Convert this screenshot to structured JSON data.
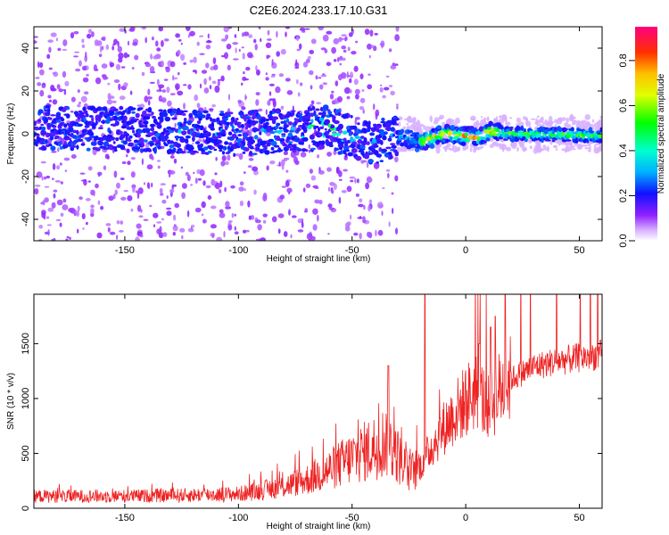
{
  "title": "C2E6.2024.233.17.10.G31",
  "chart_data": [
    {
      "type": "heatmap",
      "xlabel": "Height of straight line (km)",
      "ylabel": "Frequency (Hz)",
      "xlim": [
        -190,
        60
      ],
      "ylim": [
        -50,
        50
      ],
      "xticks": [
        -150,
        -100,
        -50,
        0,
        50
      ],
      "yticks": [
        -40,
        -20,
        0,
        20,
        40
      ],
      "colorbar": {
        "label": "Normalized spectral amplitude",
        "range": [
          0,
          0.95
        ],
        "ticks": [
          0.0,
          0.2,
          0.4,
          0.6,
          0.8
        ],
        "tick_labels": [
          "0.0",
          "0.2",
          "0.4",
          "0.6",
          "0.8"
        ],
        "colors": [
          "#ffffff",
          "#c080ff",
          "#8000ff",
          "#0000ff",
          "#00ffff",
          "#00ff00",
          "#ffff00",
          "#ff8000",
          "#ff0000",
          "#ff0080"
        ]
      },
      "ridge": {
        "description_points": [
          [
            -190,
            3
          ],
          [
            -150,
            2
          ],
          [
            -100,
            0
          ],
          [
            -70,
            2
          ],
          [
            -60,
            3
          ],
          [
            -50,
            -2
          ],
          [
            -40,
            -4
          ],
          [
            -30,
            -1
          ],
          [
            -20,
            -4
          ],
          [
            -10,
            0
          ],
          [
            0,
            -1
          ],
          [
            5,
            -2
          ],
          [
            10,
            1
          ],
          [
            20,
            0
          ],
          [
            60,
            -1
          ]
        ],
        "peak_regions": [
          [
            -72,
            -52,
            0.6
          ],
          [
            -20,
            15,
            0.85
          ],
          [
            15,
            60,
            0.65
          ]
        ]
      }
    },
    {
      "type": "line",
      "xlabel": "Height of straight line (km)",
      "ylabel": "SNR (10 * v/v)",
      "xlim": [
        -190,
        60
      ],
      "ylim": [
        0,
        1950
      ],
      "xticks": [
        -150,
        -100,
        -50,
        0,
        50
      ],
      "yticks": [
        0,
        500,
        1000,
        1500
      ],
      "series": [
        {
          "color": "#ee2222",
          "envelope": [
            [
              -190,
              110
            ],
            [
              -150,
              110
            ],
            [
              -120,
              120
            ],
            [
              -100,
              130
            ],
            [
              -90,
              160
            ],
            [
              -80,
              200
            ],
            [
              -70,
              260
            ],
            [
              -60,
              350
            ],
            [
              -50,
              460
            ],
            [
              -40,
              560
            ],
            [
              -35,
              620
            ],
            [
              -30,
              480
            ],
            [
              -25,
              320
            ],
            [
              -20,
              380
            ],
            [
              -15,
              560
            ],
            [
              -10,
              720
            ],
            [
              -5,
              860
            ],
            [
              0,
              980
            ],
            [
              5,
              1080
            ],
            [
              10,
              900
            ],
            [
              15,
              1080
            ],
            [
              20,
              1180
            ],
            [
              30,
              1290
            ],
            [
              40,
              1340
            ],
            [
              50,
              1370
            ],
            [
              60,
              1400
            ]
          ],
          "spikes": [
            [
              -18,
              1950
            ],
            [
              -34,
              1300
            ],
            [
              13,
              1750
            ],
            [
              6,
              1500
            ],
            [
              11,
              1650
            ]
          ]
        }
      ]
    }
  ]
}
